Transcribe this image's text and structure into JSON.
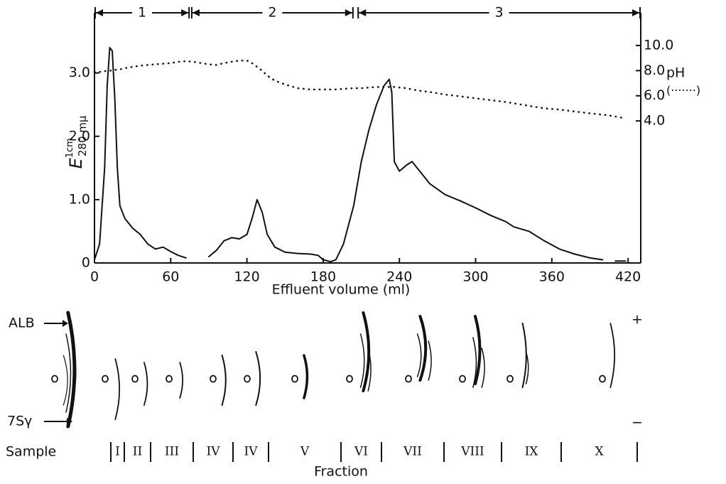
{
  "chart_data": {
    "type": "line",
    "xlabel": "Effluent volume (ml)",
    "ylabel": {
      "symbol": "E",
      "superscript": "1cm",
      "subscript": "280 mμ"
    },
    "y2label": "pH",
    "y2label_note": "(·······)",
    "xlim": [
      0,
      430
    ],
    "xticks": [
      0,
      60,
      120,
      180,
      240,
      300,
      360,
      420
    ],
    "ylim": [
      0,
      3.95
    ],
    "yticks": [
      0,
      {
        "value": 1,
        "label": "1.0"
      },
      {
        "value": 2,
        "label": "2.0"
      },
      {
        "value": 3,
        "label": "3.0"
      }
    ],
    "y2lim": [
      -7.3,
      12.6
    ],
    "y2ticks": [
      {
        "value": 4,
        "label": "4.0"
      },
      {
        "value": 6,
        "label": "6.0"
      },
      {
        "value": 8,
        "label": "8.0"
      },
      {
        "value": 10,
        "label": "10.0"
      }
    ],
    "regions": [
      {
        "label": "1",
        "range": [
          0,
          75
        ]
      },
      {
        "label": "2",
        "range": [
          76,
          204
        ]
      },
      {
        "label": "3",
        "range": [
          207,
          430
        ]
      }
    ],
    "x": [
      0,
      4,
      8,
      10,
      12,
      14,
      16,
      18,
      20,
      24,
      30,
      36,
      42,
      48,
      54,
      60,
      66,
      72,
      78,
      90,
      96,
      102,
      108,
      114,
      120,
      124,
      128,
      132,
      136,
      142,
      150,
      160,
      170,
      176,
      180,
      186,
      190,
      196,
      204,
      210,
      216,
      222,
      228,
      232,
      234,
      236,
      240,
      246,
      250,
      256,
      264,
      276,
      288,
      300,
      312,
      324,
      330,
      342,
      354,
      366,
      378,
      390,
      400,
      404,
      410,
      418
    ],
    "series": [
      {
        "color": "#111111",
        "style": "solid",
        "values": [
          0.05,
          0.3,
          1.5,
          2.8,
          3.4,
          3.35,
          2.6,
          1.5,
          0.9,
          0.7,
          0.55,
          0.45,
          0.3,
          0.22,
          0.25,
          0.18,
          0.12,
          0.08,
          null,
          0.1,
          0.2,
          0.35,
          0.4,
          0.38,
          0.45,
          0.7,
          1.0,
          0.8,
          0.45,
          0.25,
          0.17,
          0.15,
          0.14,
          0.12,
          0.05,
          0.02,
          0.05,
          0.3,
          0.9,
          1.6,
          2.1,
          2.5,
          2.8,
          2.9,
          2.7,
          1.6,
          1.45,
          1.55,
          1.6,
          1.45,
          1.25,
          1.08,
          0.98,
          0.87,
          0.75,
          0.65,
          0.57,
          0.5,
          0.35,
          0.22,
          0.14,
          0.08,
          0.05,
          null,
          0.03,
          0.03
        ]
      },
      {
        "color": "#111111",
        "style": "dotted",
        "axis": "y2",
        "values": [
          7.9,
          7.9,
          7.95,
          8.0,
          8.0,
          8.0,
          8.05,
          8.1,
          8.1,
          8.2,
          8.3,
          8.4,
          8.45,
          8.5,
          8.55,
          8.6,
          8.7,
          8.75,
          8.7,
          8.5,
          8.45,
          8.6,
          8.7,
          8.8,
          8.8,
          8.6,
          8.3,
          8.0,
          7.6,
          7.2,
          6.9,
          6.6,
          6.5,
          6.5,
          6.5,
          6.5,
          6.5,
          6.55,
          6.6,
          6.6,
          6.65,
          6.7,
          6.7,
          6.7,
          6.7,
          6.7,
          6.65,
          6.6,
          6.5,
          6.4,
          6.3,
          6.1,
          5.95,
          5.8,
          5.65,
          5.5,
          5.4,
          5.2,
          5.0,
          4.9,
          4.75,
          4.6,
          4.5,
          4.45,
          4.35,
          4.2
        ]
      }
    ]
  },
  "electrophoresis": {
    "reference_labels": [
      "ALB",
      "7Sγ"
    ],
    "polarity": [
      "+",
      "−"
    ],
    "row_label": "Sample",
    "fractions": [
      "I",
      "II",
      "III",
      "IV",
      "IV",
      "V",
      "VI",
      "VII",
      "VIII",
      "IX",
      "X"
    ],
    "axis_label": "Fraction"
  }
}
